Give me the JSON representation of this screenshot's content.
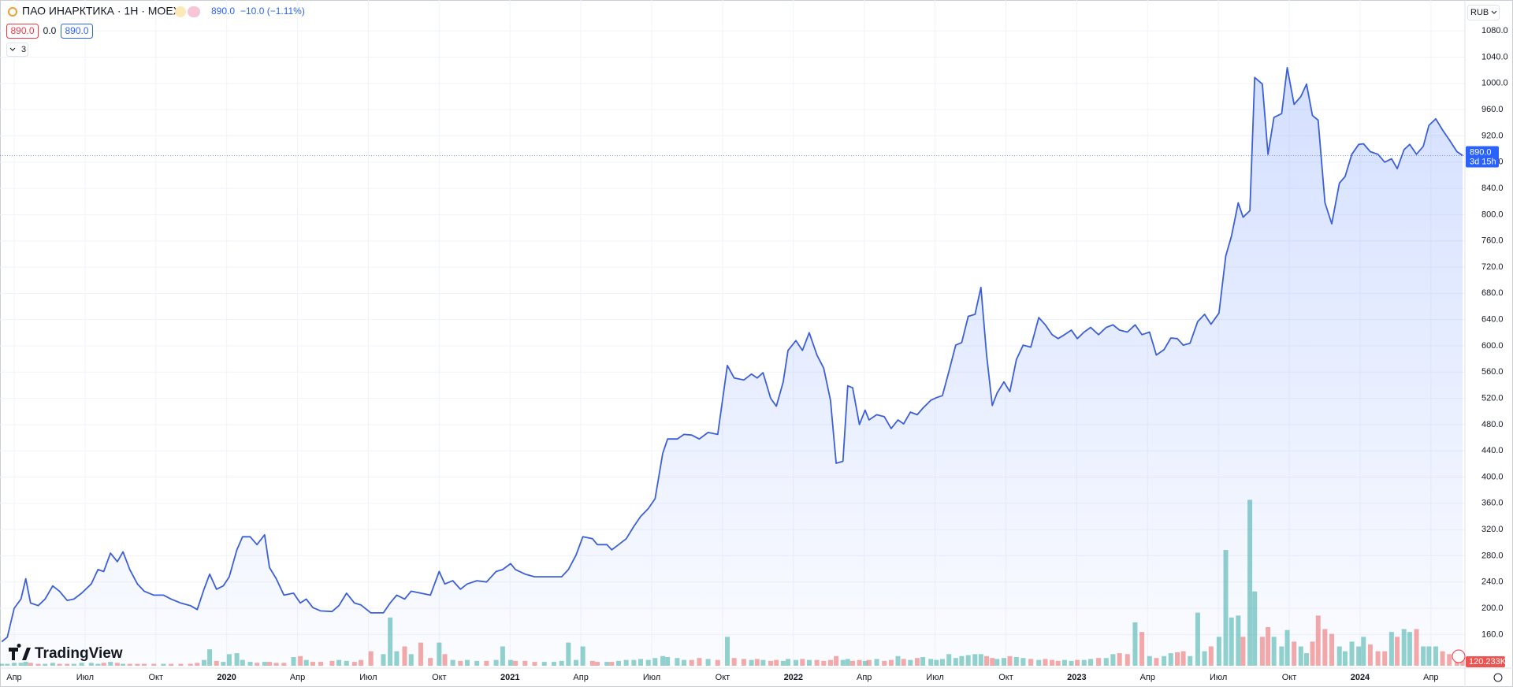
{
  "header": {
    "symbol": "ПАО ИНАРКТИКА · 1Н · MOEX",
    "quote": "890.0",
    "change": "−10.0 (−1.11%)",
    "open_box": "890.0",
    "spread": "0.0",
    "close_box": "890.0",
    "indicators": "3",
    "currency": "RUB",
    "countdown": "3d 15h",
    "brand": "TradingView"
  },
  "chart_data": {
    "type": "area",
    "color": "#3c5fd8",
    "grid": true,
    "last": {
      "value": 890,
      "label": "890.0"
    },
    "xlim": [
      2019.2,
      2024.37
    ],
    "ylim": [
      112.4,
      1127.1
    ],
    "xticks": [
      {
        "value": 2019.25,
        "label": "Апр"
      },
      {
        "value": 2019.5,
        "label": "Июл"
      },
      {
        "value": 2019.75,
        "label": "Окт"
      },
      2020,
      {
        "value": 2020.25,
        "label": "Апр"
      },
      {
        "value": 2020.5,
        "label": "Июл"
      },
      {
        "value": 2020.75,
        "label": "Окт"
      },
      2021,
      {
        "value": 2021.25,
        "label": "Апр"
      },
      {
        "value": 2021.5,
        "label": "Июл"
      },
      {
        "value": 2021.75,
        "label": "Окт"
      },
      2022,
      {
        "value": 2022.25,
        "label": "Апр"
      },
      {
        "value": 2022.5,
        "label": "Июл"
      },
      {
        "value": 2022.75,
        "label": "Окт"
      },
      2023,
      {
        "value": 2023.25,
        "label": "Апр"
      },
      {
        "value": 2023.5,
        "label": "Июл"
      },
      {
        "value": 2023.75,
        "label": "Окт"
      },
      2024,
      {
        "value": 2024.25,
        "label": "Апр"
      }
    ],
    "yticks": [
      {
        "value": 160,
        "label": "160.0"
      },
      {
        "value": 200,
        "label": "200.0"
      },
      {
        "value": 240,
        "label": "240.0"
      },
      {
        "value": 280,
        "label": "280.0"
      },
      {
        "value": 320,
        "label": "320.0"
      },
      {
        "value": 360,
        "label": "360.0"
      },
      {
        "value": 400,
        "label": "400.0"
      },
      {
        "value": 440,
        "label": "440.0"
      },
      {
        "value": 480,
        "label": "480.0"
      },
      {
        "value": 520,
        "label": "520.0"
      },
      {
        "value": 560,
        "label": "560.0"
      },
      {
        "value": 600,
        "label": "600.0"
      },
      {
        "value": 640,
        "label": "640.0"
      },
      {
        "value": 680,
        "label": "680.0"
      },
      {
        "value": 720,
        "label": "720.0"
      },
      {
        "value": 760,
        "label": "760.0"
      },
      {
        "value": 800,
        "label": "800.0"
      },
      {
        "value": 840,
        "label": "840.0"
      },
      {
        "value": 880,
        "label": "880.0"
      },
      {
        "value": 920,
        "label": "920.0"
      },
      {
        "value": 960,
        "label": "960.0"
      },
      {
        "value": 1000,
        "label": "1000.0"
      },
      {
        "value": 1040,
        "label": "1040.0"
      },
      {
        "value": 1080,
        "label": "1080.0"
      }
    ],
    "x": [
      2019.206,
      2019.226,
      2019.25,
      2019.274,
      2019.291,
      2019.308,
      2019.335,
      2019.359,
      2019.386,
      2019.41,
      2019.437,
      2019.461,
      2019.488,
      2019.522,
      2019.546,
      2019.566,
      2019.59,
      2019.614,
      2019.634,
      2019.658,
      2019.685,
      2019.709,
      2019.743,
      2019.777,
      2019.804,
      2019.838,
      2019.872,
      2019.896,
      2019.92,
      2019.94,
      2019.964,
      2019.988,
      2020.009,
      2020.036,
      2020.056,
      2020.083,
      2020.107,
      2020.134,
      2020.151,
      2020.175,
      2020.202,
      2020.236,
      2020.26,
      2020.281,
      2020.304,
      2020.332,
      2020.372,
      2020.396,
      2020.423,
      2020.451,
      2020.474,
      2020.509,
      2020.553,
      2020.577,
      2020.6,
      2020.628,
      2020.651,
      2020.685,
      2020.719,
      2020.75,
      2020.77,
      2020.798,
      2020.825,
      2020.849,
      2020.883,
      2020.917,
      2020.951,
      2020.974,
      2021.002,
      2021.019,
      2021.053,
      2021.087,
      2021.121,
      2021.155,
      2021.182,
      2021.206,
      2021.233,
      2021.257,
      2021.291,
      2021.308,
      2021.342,
      2021.359,
      2021.383,
      2021.41,
      2021.437,
      2021.461,
      2021.488,
      2021.512,
      2021.539,
      2021.556,
      2021.59,
      2021.614,
      2021.641,
      2021.668,
      2021.699,
      2021.733,
      2021.767,
      2021.791,
      2021.825,
      2021.852,
      2021.872,
      2021.893,
      2021.92,
      2021.94,
      2021.964,
      2021.981,
      2022.009,
      2022.032,
      2022.056,
      2022.083,
      2022.107,
      2022.131,
      2022.151,
      2022.175,
      2022.192,
      2022.209,
      2022.233,
      2022.253,
      2022.267,
      2022.294,
      2022.321,
      2022.345,
      2022.369,
      2022.389,
      2022.413,
      2022.437,
      2022.457,
      2022.485,
      2022.505,
      2022.526,
      2022.549,
      2022.573,
      2022.594,
      2022.617,
      2022.641,
      2022.662,
      2022.682,
      2022.702,
      2022.719,
      2022.743,
      2022.764,
      2022.787,
      2022.811,
      2022.838,
      2022.866,
      2022.889,
      2022.913,
      2022.934,
      2022.957,
      2022.981,
      2023.002,
      2023.026,
      2023.049,
      2023.077,
      2023.104,
      2023.128,
      2023.151,
      2023.179,
      2023.206,
      2023.23,
      2023.257,
      2023.281,
      2023.308,
      2023.332,
      2023.355,
      2023.376,
      2023.4,
      2023.427,
      2023.451,
      2023.474,
      2023.502,
      2023.526,
      2023.546,
      2023.57,
      2023.587,
      2023.611,
      2023.628,
      2023.655,
      2023.675,
      2023.696,
      2023.723,
      2023.743,
      2023.767,
      2023.791,
      2023.811,
      2023.832,
      2023.852,
      2023.876,
      2023.9,
      2023.927,
      2023.947,
      2023.971,
      2023.995,
      2024.012,
      2024.036,
      2024.063,
      2024.087,
      2024.111,
      2024.131,
      2024.155,
      2024.175,
      2024.199,
      2024.223,
      2024.243,
      2024.267,
      2024.291,
      2024.315,
      2024.342,
      2024.362
    ],
    "values": [
      149,
      156,
      200,
      214,
      245,
      208,
      204,
      214,
      234,
      226,
      212,
      214,
      223,
      237,
      259,
      256,
      284,
      271,
      286,
      259,
      237,
      226,
      220,
      220,
      214,
      208,
      204,
      198,
      229,
      252,
      229,
      234,
      248,
      289,
      309,
      309,
      297,
      312,
      262,
      245,
      220,
      223,
      208,
      214,
      201,
      196,
      195,
      204,
      223,
      208,
      205,
      193,
      193,
      208,
      220,
      214,
      226,
      223,
      220,
      256,
      237,
      242,
      229,
      237,
      242,
      240,
      256,
      259,
      268,
      259,
      252,
      248,
      248,
      248,
      248,
      259,
      281,
      309,
      306,
      297,
      297,
      289,
      297,
      306,
      325,
      340,
      352,
      367,
      436,
      458,
      458,
      465,
      464,
      458,
      468,
      465,
      570,
      551,
      548,
      557,
      551,
      559,
      520,
      508,
      545,
      593,
      608,
      593,
      620,
      586,
      566,
      517,
      421,
      424,
      539,
      536,
      480,
      502,
      487,
      495,
      492,
      474,
      487,
      481,
      499,
      495,
      505,
      517,
      521,
      524,
      561,
      601,
      605,
      645,
      648,
      689,
      586,
      509,
      528,
      545,
      530,
      579,
      601,
      598,
      643,
      632,
      617,
      611,
      617,
      624,
      611,
      621,
      628,
      617,
      628,
      632,
      624,
      621,
      632,
      617,
      621,
      586,
      594,
      612,
      611,
      601,
      604,
      637,
      648,
      633,
      650,
      737,
      767,
      818,
      796,
      806,
      1009,
      999,
      892,
      948,
      954,
      1024,
      968,
      980,
      999,
      951,
      944,
      818,
      786,
      848,
      858,
      892,
      907,
      908,
      896,
      892,
      880,
      885,
      870,
      899,
      907,
      892,
      904,
      936,
      946,
      929,
      914,
      896,
      890
    ],
    "volume": [
      20000,
      20000,
      30000,
      30000,
      40000,
      30000,
      20000,
      20000,
      30000,
      20000,
      20000,
      20000,
      30000,
      30000,
      20000,
      30000,
      40000,
      30000,
      20000,
      20000,
      20000,
      20000,
      20000,
      20000,
      20000,
      20000,
      20000,
      30000,
      60000,
      170000,
      50000,
      40000,
      120000,
      130000,
      60000,
      40000,
      30000,
      40000,
      40000,
      30000,
      30000,
      90000,
      100000,
      60000,
      40000,
      40000,
      50000,
      60000,
      50000,
      40000,
      60000,
      150000,
      120000,
      500000,
      150000,
      200000,
      120000,
      240000,
      80000,
      240000,
      120000,
      60000,
      50000,
      60000,
      50000,
      50000,
      60000,
      200000,
      60000,
      50000,
      50000,
      40000,
      40000,
      40000,
      50000,
      240000,
      60000,
      200000,
      50000,
      40000,
      40000,
      40000,
      50000,
      60000,
      60000,
      70000,
      60000,
      80000,
      100000,
      90000,
      80000,
      60000,
      60000,
      80000,
      70000,
      60000,
      300000,
      80000,
      70000,
      60000,
      70000,
      60000,
      50000,
      60000,
      50000,
      70000,
      60000,
      70000,
      60000,
      60000,
      50000,
      60000,
      100000,
      60000,
      70000,
      50000,
      60000,
      50000,
      60000,
      70000,
      50000,
      60000,
      100000,
      70000,
      60000,
      80000,
      90000,
      70000,
      60000,
      70000,
      120000,
      80000,
      100000,
      110000,
      120000,
      120000,
      100000,
      80000,
      70000,
      80000,
      100000,
      90000,
      80000,
      70000,
      60000,
      70000,
      60000,
      50000,
      60000,
      50000,
      60000,
      60000,
      70000,
      80000,
      80000,
      120000,
      130000,
      120000,
      450000,
      350000,
      100000,
      80000,
      100000,
      130000,
      140000,
      150000,
      100000,
      550000,
      150000,
      200000,
      300000,
      1200000,
      500000,
      520000,
      300000,
      1720000,
      770000,
      300000,
      400000,
      300000,
      200000,
      370000,
      250000,
      200000,
      130000,
      250000,
      520000,
      380000,
      330000,
      200000,
      150000,
      250000,
      200000,
      300000,
      220000,
      150000,
      150000,
      350000,
      300000,
      380000,
      350000,
      380000,
      200000,
      200000,
      200000,
      150000,
      120000,
      120000,
      120233
    ],
    "volume_label": "120.233K"
  }
}
